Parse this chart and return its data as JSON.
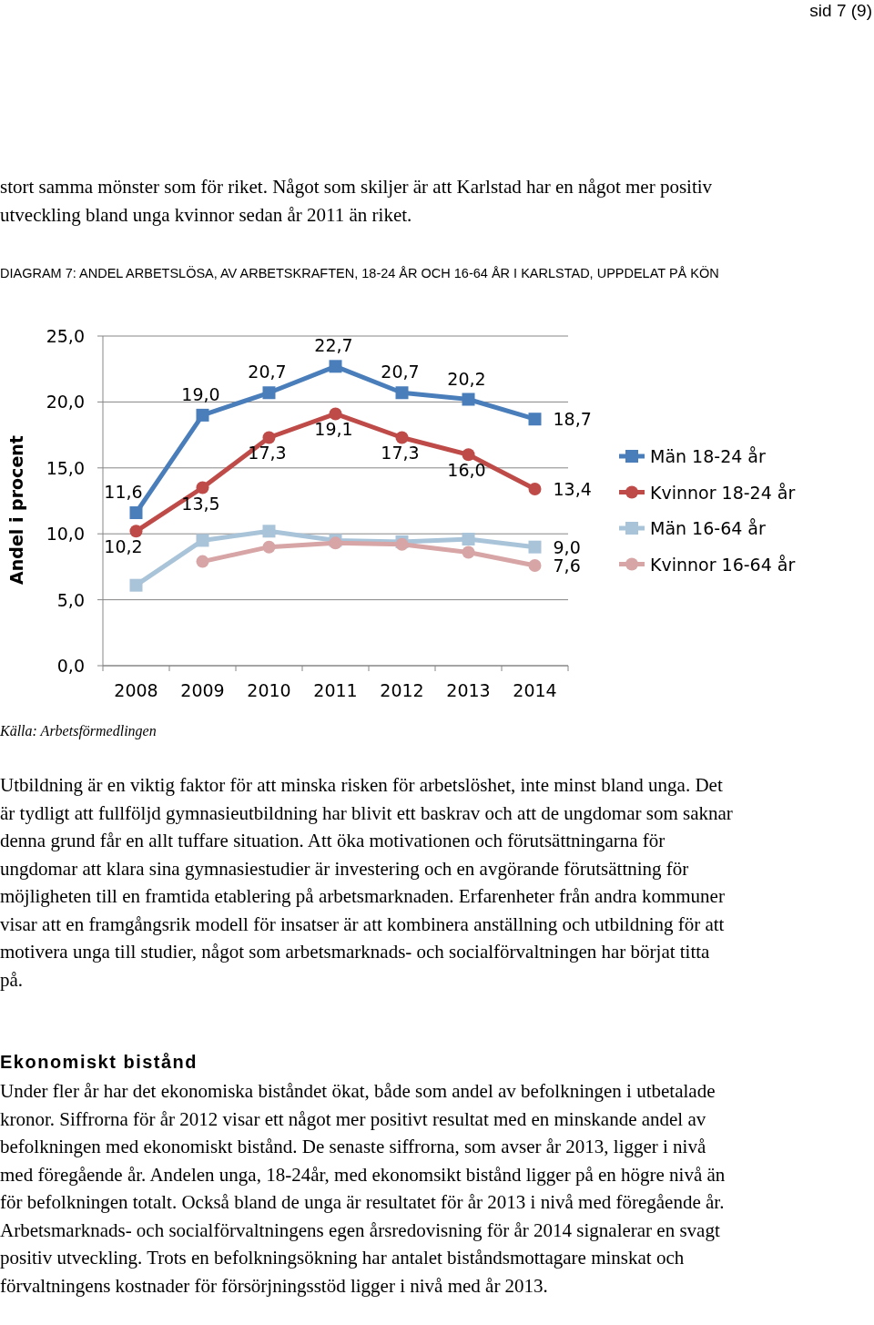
{
  "chart_data": {
    "type": "line",
    "title": "DIAGRAM 7: ANDEL ARBETSLÖSA, AV ARBETSKRAFTEN, 18-24 ÅR OCH 16-64 ÅR I KARLSTAD, UPPDELAT PÅ KÖN",
    "ylabel": "Andel i procent",
    "categories": [
      "2008",
      "2009",
      "2010",
      "2011",
      "2012",
      "2013",
      "2014"
    ],
    "series": [
      {
        "name": "Män 18-24 år",
        "color": "#4a7ebb",
        "marker": "square",
        "values": [
          11.6,
          19.0,
          20.7,
          22.7,
          20.7,
          20.2,
          18.7
        ],
        "value_labels": [
          "11,6",
          "19,0",
          "20,7",
          "22,7",
          "20,7",
          "20,2",
          "18,7"
        ]
      },
      {
        "name": "Kvinnor 18-24 år",
        "color": "#be4b48",
        "marker": "circle",
        "values": [
          10.2,
          13.5,
          17.3,
          19.1,
          17.3,
          16.0,
          13.4
        ],
        "value_labels": [
          "10,2",
          "13,5",
          "17,3",
          "19,1",
          "17,3",
          "16,0",
          "13,4"
        ]
      },
      {
        "name": "Män 16-64 år",
        "color": "#a9c4d9",
        "marker": "square",
        "values": [
          6.1,
          9.5,
          10.2,
          9.5,
          9.4,
          9.6,
          9.0
        ],
        "value_labels": [
          null,
          null,
          null,
          null,
          null,
          null,
          "9,0"
        ]
      },
      {
        "name": "Kvinnor 16-64 år",
        "color": "#d7a5a5",
        "marker": "circle",
        "values": [
          null,
          7.9,
          9.0,
          9.3,
          9.2,
          8.6,
          7.6
        ],
        "value_labels": [
          null,
          null,
          null,
          null,
          null,
          null,
          "7,6"
        ]
      }
    ],
    "ylim": [
      0,
      25
    ],
    "yticks": [
      {
        "value": 0,
        "label": "0,0"
      },
      {
        "value": 5,
        "label": "5,0"
      },
      {
        "value": 10,
        "label": "10,0"
      },
      {
        "value": 15,
        "label": "15,0"
      },
      {
        "value": 20,
        "label": "20,0"
      },
      {
        "value": 25,
        "label": "25,0"
      }
    ],
    "grid": "y",
    "legend": "right",
    "annotations": [
      "sid 7 (9)",
      "stort samma mönster som för riket. Något som skiljer är att Karlstad har en något mer positiv utveckling bland unga kvinnor sedan år 2011 än riket.",
      "Källa: Arbetsförmedlingen",
      "Utbildning är en viktig faktor för att minska risken för arbetslöshet, inte minst bland unga. Det är tydligt att fullföljd gymnasieutbildning har blivit ett baskrav och att de ungdomar som saknar denna grund får en allt tuffare situation. Att öka motivationen och förutsättningarna för ungdomar att klara sina gymnasiestudier är investering och en avgörande förutsättning för möjligheten till en framtida etablering på arbetsmarknaden. Erfarenheter från andra kommuner visar att en framgångsrik modell för insatser är att kombinera anställning och utbildning för att motivera unga till studier, något som arbetsmarknads- och socialförvaltningen har börjat titta på.",
      "Ekonomiskt bistånd",
      "Under fler år har det ekonomiska biståndet ökat, både som andel av befolkningen i utbetalade kronor. Siffrorna för år 2012 visar ett något mer positivt resultat med en minskande andel av befolkningen med ekonomiskt bistånd. De senaste siffrorna, som avser år 2013, ligger i nivå med föregående år. Andelen unga, 18-24år, med ekonomsikt bistånd ligger på en högre nivå än för befolkningen totalt. Också bland de unga är resultatet för år 2013 i nivå med föregående år. Arbetsmarknads- och socialförvaltningens egen årsredovisning för år 2014 signalerar en svagt positiv utveckling. Trots en befolkningsökning har antalet biståndsmottagare minskat och förvaltningens kostnader för försörjningsstöd ligger i nivå med år 2013."
    ]
  }
}
